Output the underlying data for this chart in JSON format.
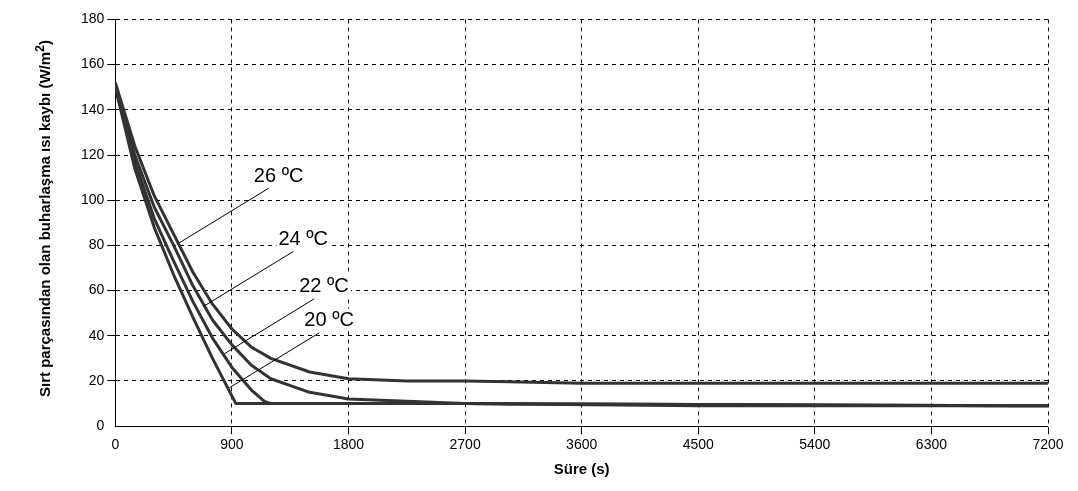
{
  "chart_data": {
    "type": "line",
    "xlabel": "Süre (s)",
    "ylabel": "Sırt parçasından olan buharlaşma ısı kaybı (W/m$^{2}$)",
    "xlim": [
      0,
      7200
    ],
    "xticks": [
      0,
      900,
      1800,
      2700,
      3600,
      4500,
      5400,
      6300,
      7200
    ],
    "ylim": [
      0,
      180
    ],
    "yticks": [
      0,
      20,
      40,
      60,
      80,
      100,
      120,
      140,
      160,
      180
    ],
    "grid": true,
    "legend": false,
    "marker": "none",
    "line_style": "solid",
    "series": [
      {
        "color": "#333333",
        "x": [
          0,
          150,
          300,
          450,
          600,
          750,
          900,
          1050,
          1200,
          1500,
          1800,
          2250,
          2700,
          3600,
          5400,
          7200
        ],
        "values": [
          152,
          124,
          102,
          85,
          68,
          54,
          43,
          35,
          30,
          24,
          21,
          20,
          20,
          19,
          19,
          19
        ]
      },
      {
        "color": "#333333",
        "x": [
          0,
          150,
          300,
          450,
          600,
          750,
          900,
          1050,
          1200,
          1500,
          1800,
          2250,
          2700,
          4500,
          7200
        ],
        "values": [
          151,
          120,
          97,
          80,
          62,
          47,
          36,
          27,
          21,
          15,
          12,
          11,
          10,
          9,
          9
        ]
      },
      {
        "color": "#333333",
        "x": [
          0,
          150,
          300,
          450,
          600,
          750,
          900,
          1050,
          1150,
          1200,
          2700,
          7200
        ],
        "values": [
          150,
          117,
          92,
          73,
          55,
          39,
          26,
          16,
          11,
          10,
          10,
          9
        ]
      },
      {
        "color": "#333333",
        "x": [
          0,
          150,
          300,
          450,
          600,
          750,
          930,
          2700,
          7200
        ],
        "values": [
          150,
          114,
          88,
          67,
          48,
          30,
          10,
          10,
          9
        ]
      }
    ],
    "annotations": [
      {
        "text": "26 ºC",
        "x": 490,
        "y": 81
      },
      {
        "text": "24 ºC",
        "x": 680,
        "y": 53
      },
      {
        "text": "22 ºC",
        "x": 840,
        "y": 32
      },
      {
        "text": "20 ºC",
        "x": 880,
        "y": 17
      }
    ]
  }
}
